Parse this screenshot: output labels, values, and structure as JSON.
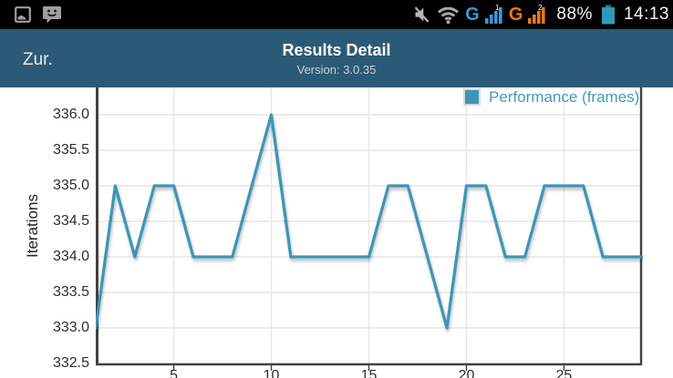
{
  "status_bar": {
    "left_icons": [
      "screenshot-icon",
      "messages-icon"
    ],
    "right_icons": [
      "mute-icon",
      "wifi-icon",
      "signal-bars-sim1",
      "signal-bars-sim2",
      "battery-icon"
    ],
    "sim1": {
      "carrier_letter": "G",
      "slot": "1"
    },
    "sim2": {
      "carrier_letter": "G",
      "slot": "2"
    },
    "battery_percent": "88%",
    "time": "14:13"
  },
  "action_bar": {
    "back_label": "Zur.",
    "title": "Results Detail",
    "subtitle": "Version: 3.0.35"
  },
  "chart_data": {
    "type": "line",
    "title": "",
    "ylabel": "Iterations",
    "xlabel": "",
    "legend": [
      "Performance (frames)"
    ],
    "legend_position": "top-right",
    "grid": true,
    "x": [
      1,
      2,
      3,
      4,
      5,
      6,
      7,
      8,
      9,
      10,
      11,
      12,
      13,
      14,
      15,
      16,
      17,
      18,
      19,
      20,
      21,
      22,
      23,
      24,
      25,
      26,
      27,
      28,
      29
    ],
    "series": [
      {
        "name": "Performance (frames)",
        "color": "#3b96b8",
        "values": [
          333,
          335,
          334,
          335,
          335,
          334,
          334,
          334,
          335,
          336,
          334,
          334,
          334,
          334,
          334,
          335,
          335,
          334,
          333,
          335,
          335,
          334,
          334,
          335,
          335,
          335,
          334,
          334,
          334
        ]
      }
    ],
    "ylim": [
      332.5,
      336.0
    ],
    "yticks": [
      "336.0",
      "335.5",
      "335.0",
      "334.5",
      "334.0",
      "333.5",
      "333.0",
      "332.5"
    ],
    "xticks": [
      5,
      10,
      15,
      20,
      25
    ]
  },
  "colors": {
    "status_bar_bg": "#000000",
    "action_bar_bg": "#2b5a76",
    "line": "#3b96b8",
    "legend_text": "#3f9ac2",
    "grid_line": "#e6e6e6",
    "axis_border": "#414141",
    "sim1_blue": "#3e95d3",
    "sim2_orange": "#e8791a",
    "battery_teal": "#2f9ab8"
  }
}
